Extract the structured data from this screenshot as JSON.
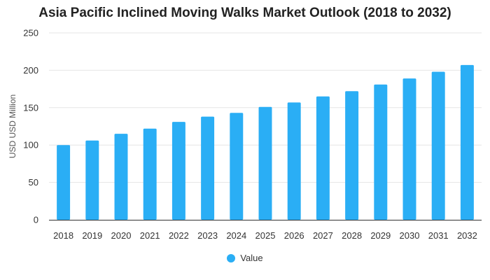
{
  "chart_data": {
    "type": "bar",
    "title": "Asia Pacific Inclined Moving Walks Market Outlook (2018 to 2032)",
    "xlabel": "",
    "ylabel": "USD USD Million",
    "categories": [
      "2018",
      "2019",
      "2020",
      "2021",
      "2022",
      "2023",
      "2024",
      "2025",
      "2026",
      "2027",
      "2028",
      "2029",
      "2030",
      "2031",
      "2032"
    ],
    "series": [
      {
        "name": "Value",
        "values": [
          100,
          106,
          115,
          122,
          131,
          138,
          143,
          151,
          157,
          165,
          172,
          181,
          189,
          198,
          207
        ]
      }
    ],
    "ylim": [
      0,
      250
    ],
    "yticks": [
      "0",
      "50",
      "100",
      "150",
      "200",
      "250"
    ],
    "grid": true,
    "legend": "bottom-center",
    "colors": {
      "bar": "#2AAEF5",
      "grid": "#E6E6E6",
      "axis": "#333333"
    }
  }
}
